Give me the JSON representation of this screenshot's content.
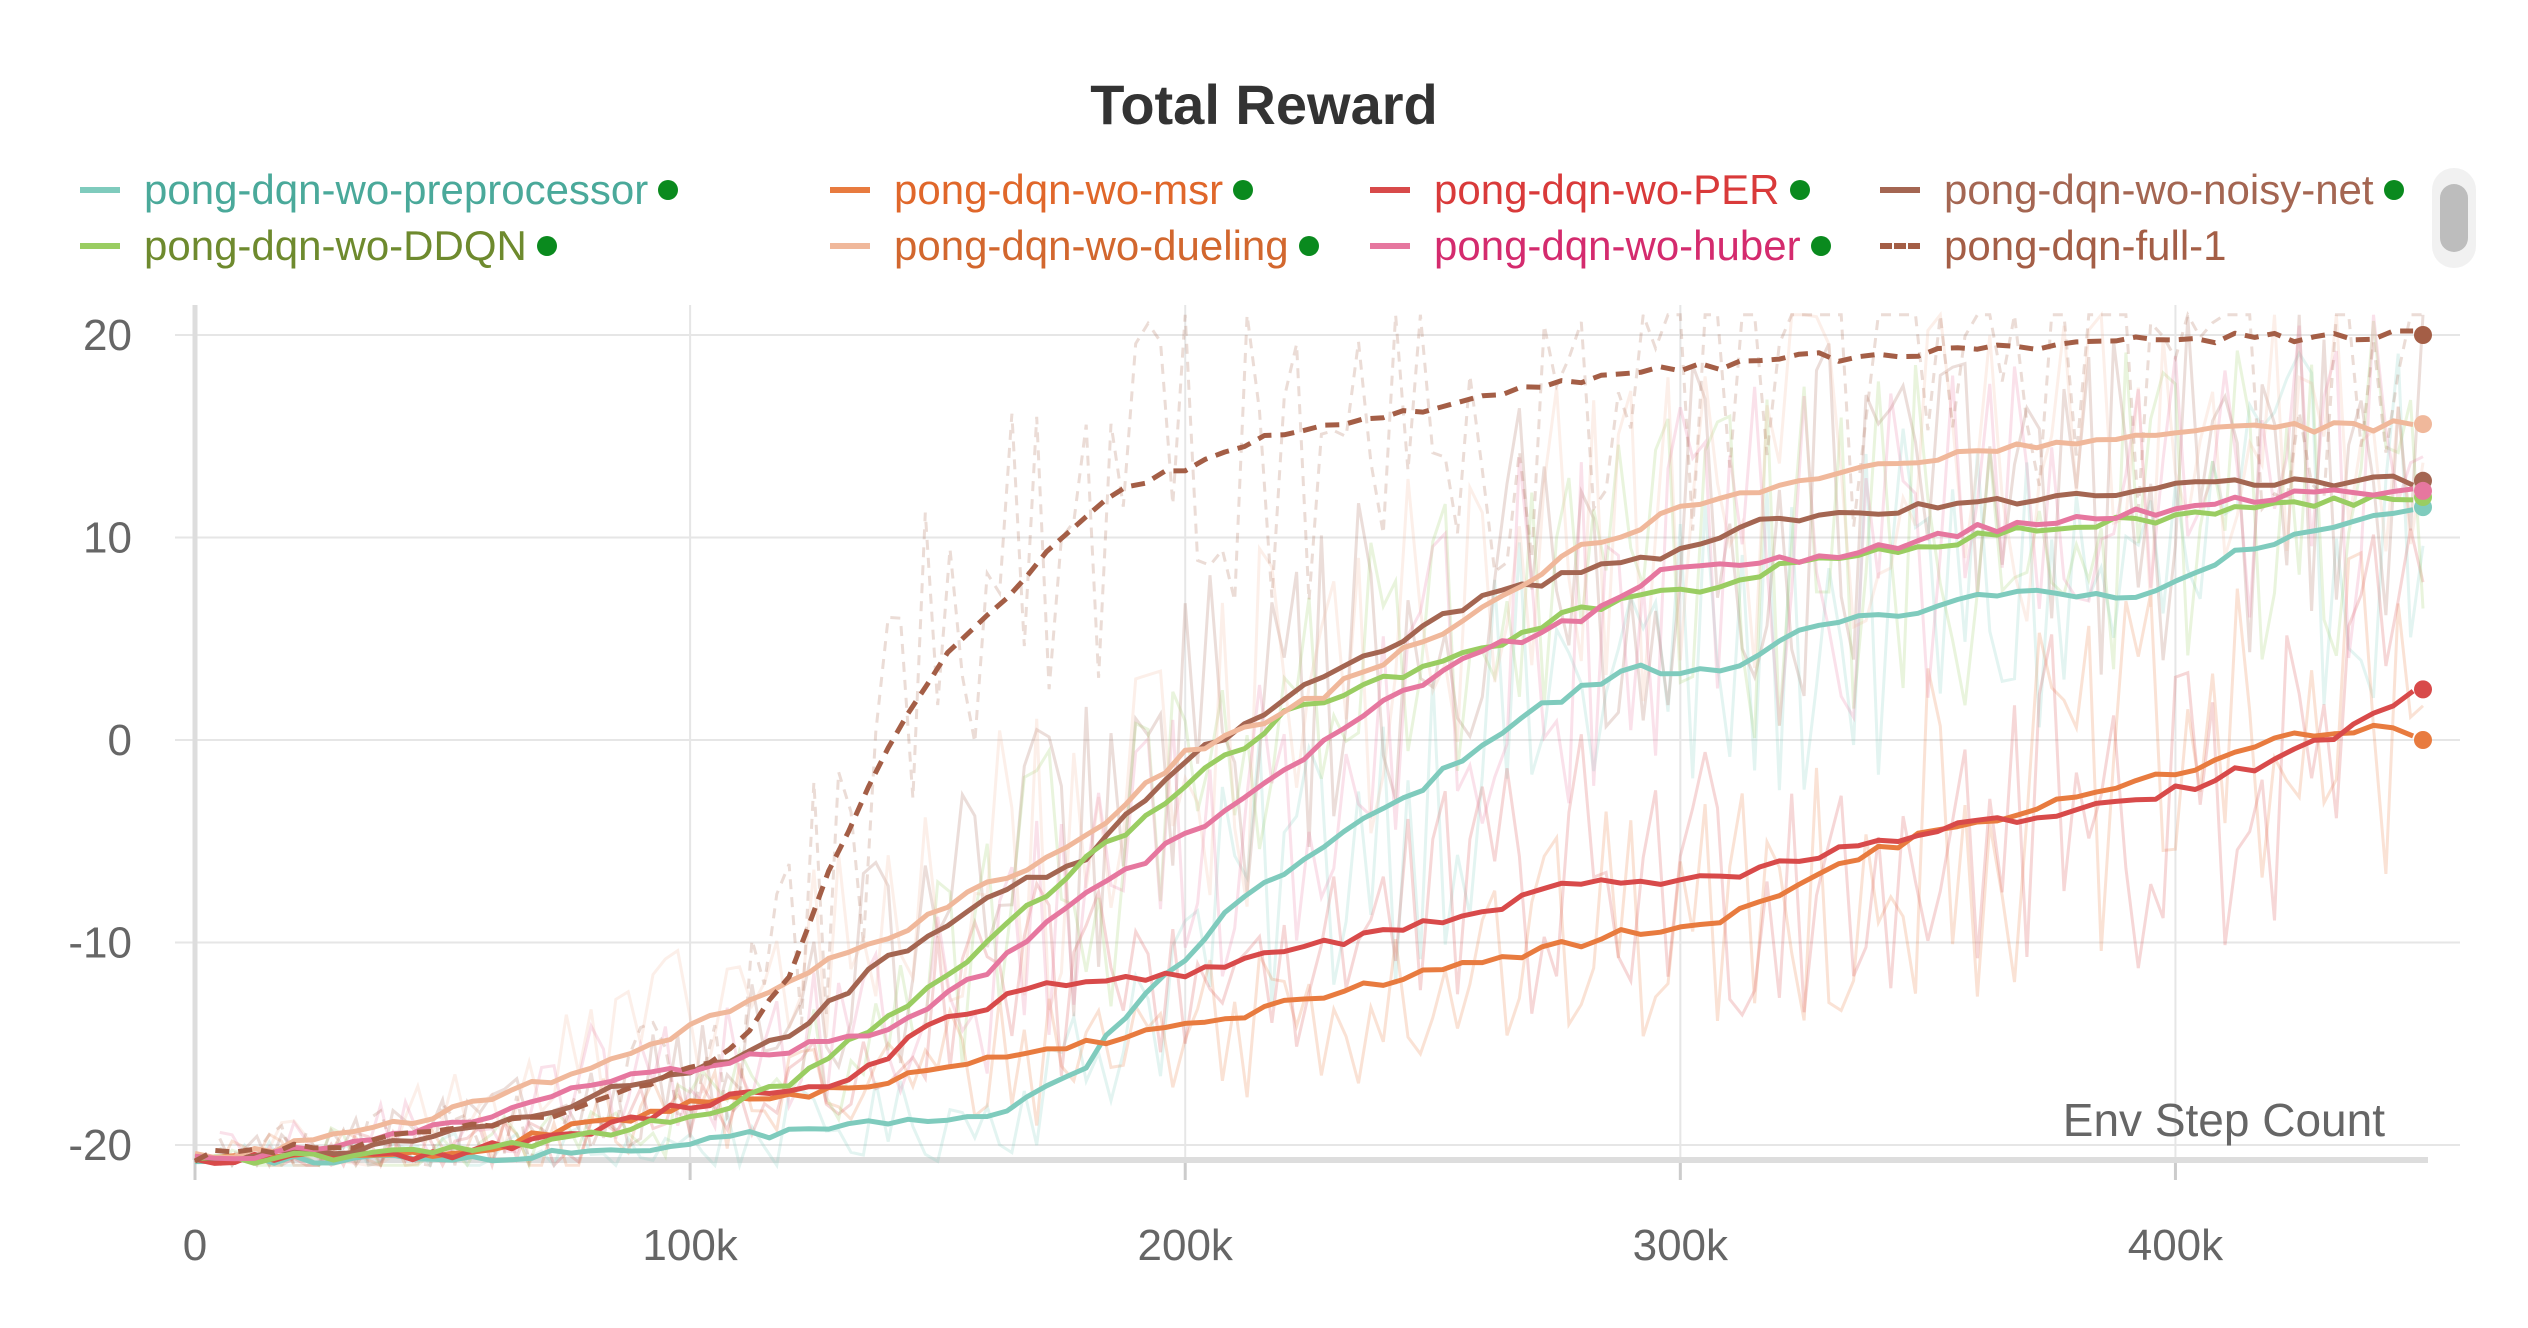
{
  "chart_data": {
    "type": "line",
    "title": "Total Reward",
    "xlabel": "Env Step Count",
    "ylabel": "",
    "xlim": [
      0,
      450000
    ],
    "ylim": [
      -21,
      21
    ],
    "x_ticks": [
      0,
      100000,
      200000,
      300000,
      400000
    ],
    "x_tick_labels": [
      "0",
      "100k",
      "200k",
      "300k",
      "400k"
    ],
    "y_ticks": [
      -20,
      -10,
      0,
      10,
      20
    ],
    "y_tick_labels": [
      "-20",
      "-10",
      "0",
      "10",
      "20"
    ],
    "grid": true,
    "legend_position": "top",
    "series": [
      {
        "name": "pong-dqn-wo-preprocessor",
        "color": "#7fcbbd",
        "text_color": "#4aa99a",
        "dashed": false,
        "status_dot": true,
        "smoothed": [
          [
            0,
            -20.7
          ],
          [
            60000,
            -20.6
          ],
          [
            80000,
            -20.3
          ],
          [
            100000,
            -20
          ],
          [
            120000,
            -19.3
          ],
          [
            140000,
            -18.9
          ],
          [
            160000,
            -18.6
          ],
          [
            180000,
            -16
          ],
          [
            190000,
            -13
          ],
          [
            200000,
            -11
          ],
          [
            210000,
            -8
          ],
          [
            230000,
            -5
          ],
          [
            250000,
            -2
          ],
          [
            270000,
            1.5
          ],
          [
            290000,
            3.5
          ],
          [
            310000,
            3.5
          ],
          [
            330000,
            6
          ],
          [
            350000,
            6.5
          ],
          [
            370000,
            7.5
          ],
          [
            390000,
            7
          ],
          [
            410000,
            9
          ],
          [
            430000,
            10.5
          ],
          [
            450000,
            11.5
          ]
        ]
      },
      {
        "name": "pong-dqn-wo-msr",
        "color": "#e87b3f",
        "text_color": "#e0672a",
        "dashed": false,
        "status_dot": true,
        "smoothed": [
          [
            0,
            -20.7
          ],
          [
            40000,
            -20.6
          ],
          [
            60000,
            -20
          ],
          [
            80000,
            -19
          ],
          [
            100000,
            -18
          ],
          [
            130000,
            -17.3
          ],
          [
            160000,
            -15.8
          ],
          [
            200000,
            -14.2
          ],
          [
            230000,
            -12.5
          ],
          [
            260000,
            -11
          ],
          [
            290000,
            -9.5
          ],
          [
            310000,
            -8.7
          ],
          [
            330000,
            -6.5
          ],
          [
            350000,
            -4.5
          ],
          [
            370000,
            -3.5
          ],
          [
            390000,
            -2
          ],
          [
            410000,
            -1
          ],
          [
            425000,
            0.3
          ],
          [
            440000,
            0.6
          ],
          [
            450000,
            0
          ]
        ]
      },
      {
        "name": "pong-dqn-wo-PER",
        "color": "#d84a4a",
        "text_color": "#d93a3a",
        "dashed": false,
        "status_dot": true,
        "smoothed": [
          [
            0,
            -20.7
          ],
          [
            50000,
            -20.5
          ],
          [
            80000,
            -19.3
          ],
          [
            100000,
            -18
          ],
          [
            130000,
            -17
          ],
          [
            150000,
            -14
          ],
          [
            170000,
            -12.2
          ],
          [
            200000,
            -11.5
          ],
          [
            230000,
            -10
          ],
          [
            260000,
            -8.5
          ],
          [
            280000,
            -7
          ],
          [
            310000,
            -6.8
          ],
          [
            330000,
            -5.5
          ],
          [
            350000,
            -4.5
          ],
          [
            380000,
            -3.5
          ],
          [
            400000,
            -2.5
          ],
          [
            420000,
            -1
          ],
          [
            435000,
            0.5
          ],
          [
            450000,
            2.5
          ]
        ]
      },
      {
        "name": "pong-dqn-wo-noisy-net",
        "color": "#a46652",
        "text_color": "#a46652",
        "dashed": false,
        "status_dot": true,
        "smoothed": [
          [
            0,
            -20.7
          ],
          [
            30000,
            -20.3
          ],
          [
            60000,
            -19.2
          ],
          [
            80000,
            -17.6
          ],
          [
            100000,
            -16.4
          ],
          [
            120000,
            -14.6
          ],
          [
            140000,
            -10.8
          ],
          [
            160000,
            -7.7
          ],
          [
            180000,
            -5.8
          ],
          [
            200000,
            -1
          ],
          [
            220000,
            2.1
          ],
          [
            240000,
            4.5
          ],
          [
            260000,
            7.1
          ],
          [
            280000,
            8.3
          ],
          [
            300000,
            9.4
          ],
          [
            320000,
            11
          ],
          [
            340000,
            11.3
          ],
          [
            360000,
            11.8
          ],
          [
            380000,
            12
          ],
          [
            400000,
            12.5
          ],
          [
            420000,
            12.7
          ],
          [
            440000,
            12.8
          ],
          [
            450000,
            12.8
          ]
        ]
      },
      {
        "name": "pong-dqn-wo-DDQN",
        "color": "#9acd62",
        "text_color": "#6e8a2e",
        "dashed": false,
        "status_dot": true,
        "smoothed": [
          [
            0,
            -20.8
          ],
          [
            60000,
            -20.2
          ],
          [
            80000,
            -19.5
          ],
          [
            100000,
            -18.7
          ],
          [
            120000,
            -17
          ],
          [
            140000,
            -13.7
          ],
          [
            160000,
            -10
          ],
          [
            180000,
            -6
          ],
          [
            200000,
            -2.3
          ],
          [
            220000,
            1.2
          ],
          [
            240000,
            3
          ],
          [
            260000,
            4.5
          ],
          [
            280000,
            6.5
          ],
          [
            300000,
            7.3
          ],
          [
            320000,
            8.5
          ],
          [
            340000,
            9.3
          ],
          [
            360000,
            10
          ],
          [
            380000,
            10.7
          ],
          [
            400000,
            11
          ],
          [
            420000,
            11.5
          ],
          [
            450000,
            12
          ]
        ]
      },
      {
        "name": "pong-dqn-wo-dueling",
        "color": "#f0b89b",
        "text_color": "#d2672e",
        "dashed": false,
        "status_dot": true,
        "smoothed": [
          [
            0,
            -20.6
          ],
          [
            20000,
            -20
          ],
          [
            40000,
            -19
          ],
          [
            60000,
            -17.8
          ],
          [
            80000,
            -16
          ],
          [
            100000,
            -14.3
          ],
          [
            120000,
            -11.8
          ],
          [
            140000,
            -9.8
          ],
          [
            160000,
            -7.2
          ],
          [
            180000,
            -4.8
          ],
          [
            200000,
            -0.6
          ],
          [
            220000,
            1.3
          ],
          [
            240000,
            3.8
          ],
          [
            260000,
            6.5
          ],
          [
            280000,
            9.5
          ],
          [
            300000,
            11.3
          ],
          [
            320000,
            12.6
          ],
          [
            340000,
            13.7
          ],
          [
            360000,
            14.3
          ],
          [
            380000,
            14.7
          ],
          [
            400000,
            15.1
          ],
          [
            420000,
            15.4
          ],
          [
            440000,
            15.5
          ],
          [
            450000,
            15.6
          ]
        ]
      },
      {
        "name": "pong-dqn-wo-huber",
        "color": "#e6779f",
        "text_color": "#d42b6e",
        "dashed": false,
        "status_dot": true,
        "smoothed": [
          [
            0,
            -20.8
          ],
          [
            30000,
            -20.1
          ],
          [
            60000,
            -18.6
          ],
          [
            80000,
            -17
          ],
          [
            100000,
            -16.3
          ],
          [
            120000,
            -15.3
          ],
          [
            140000,
            -14.2
          ],
          [
            160000,
            -11.4
          ],
          [
            180000,
            -7.5
          ],
          [
            200000,
            -4.8
          ],
          [
            220000,
            -1.4
          ],
          [
            240000,
            1.8
          ],
          [
            260000,
            4.3
          ],
          [
            280000,
            6.1
          ],
          [
            300000,
            8.7
          ],
          [
            320000,
            8.8
          ],
          [
            340000,
            9.4
          ],
          [
            360000,
            10.4
          ],
          [
            380000,
            11
          ],
          [
            400000,
            11.4
          ],
          [
            420000,
            12
          ],
          [
            440000,
            12.3
          ],
          [
            450000,
            12.3
          ]
        ]
      },
      {
        "name": "pong-dqn-full-1",
        "color": "#a45e46",
        "text_color": "#a45e46",
        "dashed": true,
        "status_dot": false,
        "smoothed": [
          [
            0,
            -20.6
          ],
          [
            30000,
            -20
          ],
          [
            60000,
            -19
          ],
          [
            80000,
            -18
          ],
          [
            100000,
            -16.2
          ],
          [
            110000,
            -15
          ],
          [
            120000,
            -11.5
          ],
          [
            130000,
            -5.5
          ],
          [
            140000,
            -0.2
          ],
          [
            150000,
            3.6
          ],
          [
            160000,
            6.2
          ],
          [
            170000,
            8.6
          ],
          [
            180000,
            11.2
          ],
          [
            190000,
            12.6
          ],
          [
            200000,
            13.5
          ],
          [
            210000,
            14.6
          ],
          [
            220000,
            15.3
          ],
          [
            240000,
            16
          ],
          [
            260000,
            16.9
          ],
          [
            280000,
            17.8
          ],
          [
            300000,
            18.3
          ],
          [
            320000,
            18.8
          ],
          [
            340000,
            19
          ],
          [
            360000,
            19.3
          ],
          [
            380000,
            19.5
          ],
          [
            400000,
            19.8
          ],
          [
            420000,
            19.9
          ],
          [
            450000,
            20
          ]
        ]
      }
    ]
  }
}
